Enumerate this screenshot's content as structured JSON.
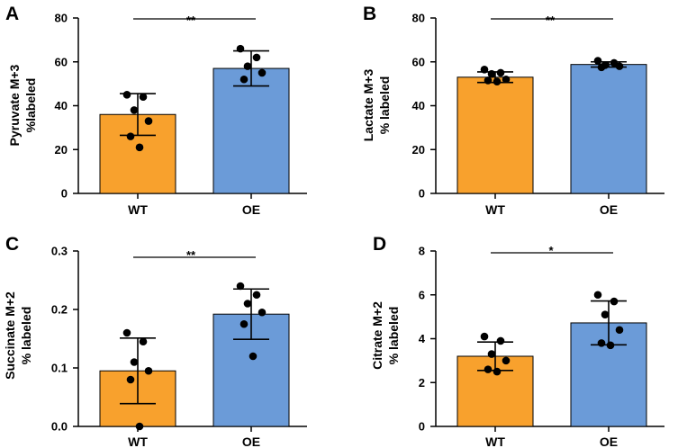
{
  "colors": {
    "wt": "#f8a12d",
    "oe": "#6b9bd8",
    "stroke": "#000000"
  },
  "chart_data": [
    {
      "type": "bar",
      "panel_letter": "A",
      "ylabel_line1": "Pyruvate M+3",
      "ylabel_line2": "%labeled",
      "categories": [
        "WT",
        "OE"
      ],
      "ylim": [
        0,
        80
      ],
      "yticks": [
        0,
        20,
        40,
        60,
        80
      ],
      "ytick_labels": [
        "0",
        "20",
        "40",
        "60",
        "80"
      ],
      "series": [
        {
          "name": "WT",
          "mean": 36,
          "sd": 9.5,
          "points": [
            45,
            44,
            38,
            33,
            26,
            21
          ]
        },
        {
          "name": "OE",
          "mean": 57,
          "sd": 8,
          "points": [
            66,
            62,
            58,
            55,
            52
          ]
        }
      ],
      "significance": "**"
    },
    {
      "type": "bar",
      "panel_letter": "B",
      "ylabel_line1": "Lactate M+3",
      "ylabel_line2": "% labeled",
      "categories": [
        "WT",
        "OE"
      ],
      "ylim": [
        0,
        80
      ],
      "yticks": [
        0,
        20,
        40,
        60,
        80
      ],
      "ytick_labels": [
        "0",
        "20",
        "40",
        "60",
        "80"
      ],
      "series": [
        {
          "name": "WT",
          "mean": 53,
          "sd": 2.4,
          "points": [
            56.5,
            55,
            54.5,
            52,
            51.5,
            51
          ]
        },
        {
          "name": "OE",
          "mean": 58.8,
          "sd": 1.2,
          "points": [
            60.5,
            59.5,
            58.5,
            58,
            57.5
          ]
        }
      ],
      "significance": "**"
    },
    {
      "type": "bar",
      "panel_letter": "C",
      "ylabel_line1": "Succinate M+2",
      "ylabel_line2": "% labeled",
      "categories": [
        "WT",
        "OE"
      ],
      "ylim": [
        0,
        0.3
      ],
      "yticks": [
        0,
        0.1,
        0.2,
        0.3
      ],
      "ytick_labels": [
        "0.0",
        "0.1",
        "0.2",
        "0.3"
      ],
      "series": [
        {
          "name": "WT",
          "mean": 0.095,
          "sd": 0.056,
          "points": [
            0.16,
            0.145,
            0.11,
            0.095,
            0.08,
            0.0
          ]
        },
        {
          "name": "OE",
          "mean": 0.192,
          "sd": 0.043,
          "points": [
            0.24,
            0.225,
            0.21,
            0.195,
            0.175,
            0.12
          ]
        }
      ],
      "significance": "**"
    },
    {
      "type": "bar",
      "panel_letter": "D",
      "ylabel_line1": "Citrate M+2",
      "ylabel_line2": "% labeled",
      "categories": [
        "WT",
        "OE"
      ],
      "ylim": [
        0,
        8
      ],
      "yticks": [
        0,
        2,
        4,
        6,
        8
      ],
      "ytick_labels": [
        "0",
        "2",
        "4",
        "6",
        "8"
      ],
      "series": [
        {
          "name": "WT",
          "mean": 3.2,
          "sd": 0.65,
          "points": [
            4.1,
            3.9,
            3.3,
            3.0,
            2.6,
            2.5
          ]
        },
        {
          "name": "OE",
          "mean": 4.72,
          "sd": 1.0,
          "points": [
            6.0,
            5.7,
            5.1,
            4.4,
            3.8,
            3.7
          ]
        }
      ],
      "significance": "*"
    }
  ]
}
